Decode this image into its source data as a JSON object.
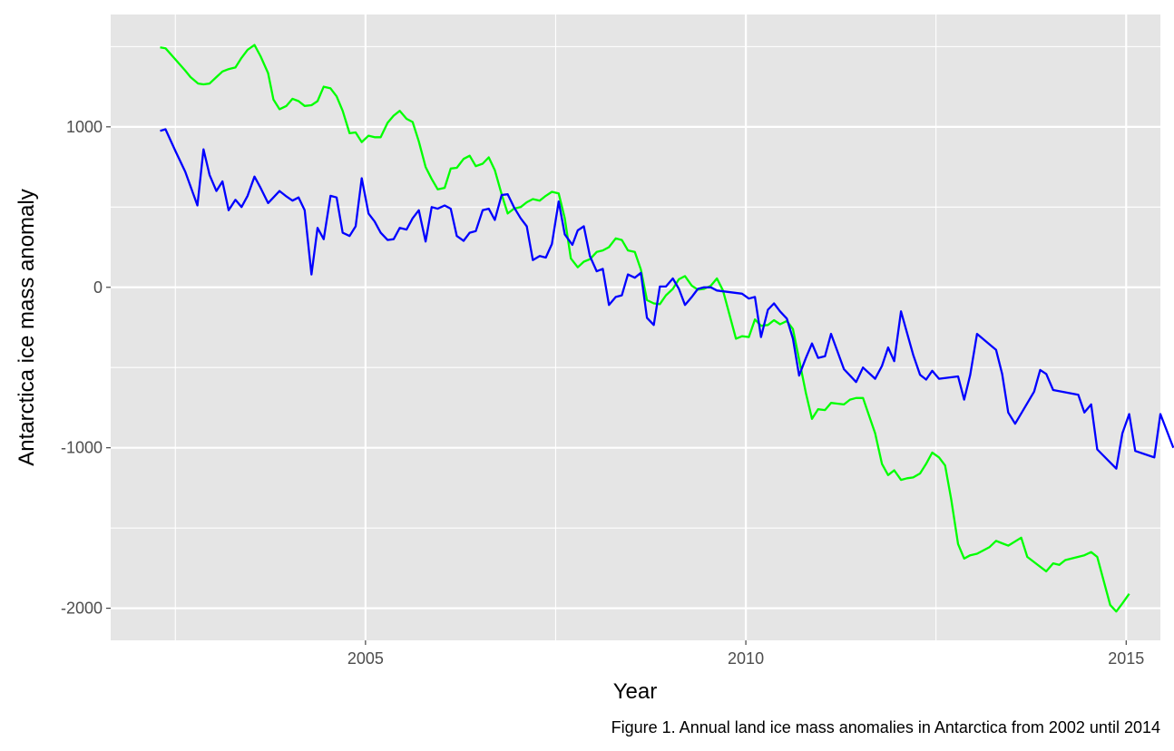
{
  "chart_data": {
    "type": "line",
    "title": "",
    "caption": "Figure 1.  Annual land ice mass anomalies in Antarctica from 2002 until 2014",
    "xlabel": "Year",
    "ylabel": "Antarctica ice mass anomaly",
    "xlim": [
      2001.65,
      2015.45
    ],
    "ylim": [
      -2200,
      1700
    ],
    "x_ticks": [
      2005,
      2010,
      2015
    ],
    "x_tick_labels": [
      "2005",
      "2010",
      "2015"
    ],
    "y_ticks": [
      -2000,
      -1000,
      0,
      1000
    ],
    "y_tick_labels": [
      "-2000",
      "-1000",
      "0",
      "1000"
    ],
    "grid": true,
    "legend": "none",
    "background": "#e5e5e5",
    "series": [
      {
        "color": "#00ff00",
        "points": [
          [
            2002.3,
            1495
          ],
          [
            2002.37,
            1490
          ],
          [
            2002.5,
            1420
          ],
          [
            2002.63,
            1350
          ],
          [
            2002.7,
            1310
          ],
          [
            2002.8,
            1270
          ],
          [
            2002.87,
            1265
          ],
          [
            2002.95,
            1270
          ],
          [
            2003.04,
            1310
          ],
          [
            2003.12,
            1345
          ],
          [
            2003.2,
            1360
          ],
          [
            2003.29,
            1370
          ],
          [
            2003.37,
            1430
          ],
          [
            2003.45,
            1480
          ],
          [
            2003.54,
            1510
          ],
          [
            2003.62,
            1440
          ],
          [
            2003.72,
            1335
          ],
          [
            2003.79,
            1170
          ],
          [
            2003.87,
            1110
          ],
          [
            2003.96,
            1130
          ],
          [
            2004.04,
            1175
          ],
          [
            2004.12,
            1160
          ],
          [
            2004.2,
            1130
          ],
          [
            2004.29,
            1135
          ],
          [
            2004.37,
            1160
          ],
          [
            2004.45,
            1250
          ],
          [
            2004.54,
            1240
          ],
          [
            2004.62,
            1190
          ],
          [
            2004.7,
            1100
          ],
          [
            2004.79,
            960
          ],
          [
            2004.87,
            965
          ],
          [
            2004.95,
            905
          ],
          [
            2005.04,
            945
          ],
          [
            2005.12,
            935
          ],
          [
            2005.2,
            935
          ],
          [
            2005.29,
            1025
          ],
          [
            2005.37,
            1070
          ],
          [
            2005.45,
            1100
          ],
          [
            2005.54,
            1050
          ],
          [
            2005.62,
            1030
          ],
          [
            2005.7,
            910
          ],
          [
            2005.79,
            750
          ],
          [
            2005.87,
            675
          ],
          [
            2005.95,
            610
          ],
          [
            2006.04,
            620
          ],
          [
            2006.12,
            740
          ],
          [
            2006.2,
            745
          ],
          [
            2006.29,
            800
          ],
          [
            2006.37,
            820
          ],
          [
            2006.45,
            755
          ],
          [
            2006.54,
            770
          ],
          [
            2006.62,
            810
          ],
          [
            2006.7,
            730
          ],
          [
            2006.79,
            580
          ],
          [
            2006.87,
            460
          ],
          [
            2006.95,
            490
          ],
          [
            2007.04,
            500
          ],
          [
            2007.12,
            530
          ],
          [
            2007.2,
            550
          ],
          [
            2007.29,
            540
          ],
          [
            2007.37,
            570
          ],
          [
            2007.45,
            595
          ],
          [
            2007.54,
            585
          ],
          [
            2007.62,
            430
          ],
          [
            2007.7,
            180
          ],
          [
            2007.79,
            125
          ],
          [
            2007.87,
            160
          ],
          [
            2007.95,
            175
          ],
          [
            2008.04,
            220
          ],
          [
            2008.12,
            230
          ],
          [
            2008.2,
            250
          ],
          [
            2008.29,
            305
          ],
          [
            2008.37,
            295
          ],
          [
            2008.45,
            230
          ],
          [
            2008.54,
            220
          ],
          [
            2008.62,
            110
          ],
          [
            2008.7,
            -80
          ],
          [
            2008.79,
            -100
          ],
          [
            2008.87,
            -105
          ],
          [
            2008.95,
            -50
          ],
          [
            2009.04,
            -10
          ],
          [
            2009.12,
            50
          ],
          [
            2009.2,
            70
          ],
          [
            2009.29,
            10
          ],
          [
            2009.37,
            -15
          ],
          [
            2009.45,
            -10
          ],
          [
            2009.54,
            10
          ],
          [
            2009.62,
            55
          ],
          [
            2009.7,
            -20
          ],
          [
            2009.79,
            -180
          ],
          [
            2009.87,
            -320
          ],
          [
            2009.95,
            -305
          ],
          [
            2010.04,
            -310
          ],
          [
            2010.12,
            -200
          ],
          [
            2010.2,
            -240
          ],
          [
            2010.29,
            -235
          ],
          [
            2010.37,
            -205
          ],
          [
            2010.45,
            -230
          ],
          [
            2010.54,
            -210
          ],
          [
            2010.62,
            -260
          ],
          [
            2010.7,
            -450
          ],
          [
            2010.79,
            -660
          ],
          [
            2010.87,
            -820
          ],
          [
            2010.95,
            -760
          ],
          [
            2011.04,
            -765
          ],
          [
            2011.12,
            -720
          ],
          [
            2011.2,
            -725
          ],
          [
            2011.29,
            -730
          ],
          [
            2011.37,
            -700
          ],
          [
            2011.45,
            -690
          ],
          [
            2011.54,
            -690
          ],
          [
            2011.7,
            -910
          ],
          [
            2011.79,
            -1100
          ],
          [
            2011.87,
            -1170
          ],
          [
            2011.95,
            -1140
          ],
          [
            2012.04,
            -1200
          ],
          [
            2012.12,
            -1190
          ],
          [
            2012.2,
            -1185
          ],
          [
            2012.29,
            -1160
          ],
          [
            2012.37,
            -1100
          ],
          [
            2012.45,
            -1030
          ],
          [
            2012.54,
            -1060
          ],
          [
            2012.62,
            -1110
          ],
          [
            2012.7,
            -1320
          ],
          [
            2012.79,
            -1600
          ],
          [
            2012.87,
            -1690
          ],
          [
            2012.95,
            -1670
          ],
          [
            2013.04,
            -1660
          ],
          [
            2013.2,
            -1620
          ],
          [
            2013.29,
            -1580
          ],
          [
            2013.37,
            -1595
          ],
          [
            2013.45,
            -1610
          ],
          [
            2013.62,
            -1560
          ],
          [
            2013.7,
            -1680
          ],
          [
            2013.95,
            -1770
          ],
          [
            2014.04,
            -1720
          ],
          [
            2014.12,
            -1730
          ],
          [
            2014.2,
            -1700
          ],
          [
            2014.45,
            -1670
          ],
          [
            2014.54,
            -1650
          ],
          [
            2014.62,
            -1680
          ],
          [
            2014.79,
            -1980
          ],
          [
            2014.87,
            -2020
          ],
          [
            2014.95,
            -1970
          ],
          [
            2015.04,
            -1910
          ]
        ]
      },
      {
        "color": "#0000ff",
        "points": [
          [
            2002.3,
            975
          ],
          [
            2002.37,
            985
          ],
          [
            2002.5,
            850
          ],
          [
            2002.63,
            720
          ],
          [
            2002.79,
            510
          ],
          [
            2002.87,
            860
          ],
          [
            2002.95,
            700
          ],
          [
            2003.04,
            600
          ],
          [
            2003.12,
            660
          ],
          [
            2003.2,
            480
          ],
          [
            2003.29,
            545
          ],
          [
            2003.37,
            500
          ],
          [
            2003.45,
            570
          ],
          [
            2003.54,
            690
          ],
          [
            2003.62,
            620
          ],
          [
            2003.72,
            525
          ],
          [
            2003.79,
            560
          ],
          [
            2003.87,
            600
          ],
          [
            2003.95,
            570
          ],
          [
            2004.04,
            540
          ],
          [
            2004.12,
            560
          ],
          [
            2004.2,
            480
          ],
          [
            2004.29,
            80
          ],
          [
            2004.37,
            370
          ],
          [
            2004.45,
            300
          ],
          [
            2004.54,
            570
          ],
          [
            2004.62,
            560
          ],
          [
            2004.7,
            340
          ],
          [
            2004.79,
            320
          ],
          [
            2004.87,
            380
          ],
          [
            2004.95,
            680
          ],
          [
            2005.04,
            460
          ],
          [
            2005.12,
            410
          ],
          [
            2005.2,
            340
          ],
          [
            2005.29,
            295
          ],
          [
            2005.37,
            300
          ],
          [
            2005.45,
            370
          ],
          [
            2005.54,
            360
          ],
          [
            2005.62,
            430
          ],
          [
            2005.7,
            480
          ],
          [
            2005.79,
            285
          ],
          [
            2005.87,
            500
          ],
          [
            2005.95,
            490
          ],
          [
            2006.04,
            510
          ],
          [
            2006.12,
            490
          ],
          [
            2006.2,
            320
          ],
          [
            2006.29,
            290
          ],
          [
            2006.37,
            340
          ],
          [
            2006.45,
            350
          ],
          [
            2006.54,
            480
          ],
          [
            2006.62,
            490
          ],
          [
            2006.7,
            420
          ],
          [
            2006.79,
            575
          ],
          [
            2006.87,
            580
          ],
          [
            2006.95,
            500
          ],
          [
            2007.04,
            430
          ],
          [
            2007.12,
            380
          ],
          [
            2007.2,
            170
          ],
          [
            2007.29,
            195
          ],
          [
            2007.37,
            185
          ],
          [
            2007.45,
            270
          ],
          [
            2007.54,
            535
          ],
          [
            2007.62,
            330
          ],
          [
            2007.72,
            265
          ],
          [
            2007.79,
            355
          ],
          [
            2007.87,
            380
          ],
          [
            2007.95,
            195
          ],
          [
            2008.04,
            100
          ],
          [
            2008.12,
            115
          ],
          [
            2008.2,
            -110
          ],
          [
            2008.29,
            -60
          ],
          [
            2008.37,
            -50
          ],
          [
            2008.45,
            80
          ],
          [
            2008.54,
            60
          ],
          [
            2008.62,
            90
          ],
          [
            2008.7,
            -190
          ],
          [
            2008.79,
            -235
          ],
          [
            2008.87,
            5
          ],
          [
            2008.95,
            5
          ],
          [
            2009.04,
            55
          ],
          [
            2009.12,
            -10
          ],
          [
            2009.2,
            -110
          ],
          [
            2009.29,
            -60
          ],
          [
            2009.37,
            -10
          ],
          [
            2009.45,
            0
          ],
          [
            2009.54,
            0
          ],
          [
            2009.62,
            -20
          ],
          [
            2009.95,
            -40
          ],
          [
            2010.04,
            -70
          ],
          [
            2010.12,
            -60
          ],
          [
            2010.2,
            -310
          ],
          [
            2010.29,
            -140
          ],
          [
            2010.37,
            -100
          ],
          [
            2010.45,
            -150
          ],
          [
            2010.54,
            -195
          ],
          [
            2010.62,
            -320
          ],
          [
            2010.7,
            -550
          ],
          [
            2010.79,
            -440
          ],
          [
            2010.87,
            -350
          ],
          [
            2010.95,
            -440
          ],
          [
            2011.04,
            -430
          ],
          [
            2011.12,
            -290
          ],
          [
            2011.29,
            -510
          ],
          [
            2011.37,
            -550
          ],
          [
            2011.45,
            -590
          ],
          [
            2011.54,
            -500
          ],
          [
            2011.7,
            -570
          ],
          [
            2011.79,
            -490
          ],
          [
            2011.87,
            -375
          ],
          [
            2011.95,
            -460
          ],
          [
            2012.04,
            -150
          ],
          [
            2012.2,
            -420
          ],
          [
            2012.29,
            -545
          ],
          [
            2012.37,
            -575
          ],
          [
            2012.45,
            -520
          ],
          [
            2012.54,
            -570
          ],
          [
            2012.79,
            -555
          ],
          [
            2012.87,
            -700
          ],
          [
            2012.95,
            -545
          ],
          [
            2013.04,
            -290
          ],
          [
            2013.29,
            -390
          ],
          [
            2013.37,
            -540
          ],
          [
            2013.45,
            -780
          ],
          [
            2013.54,
            -850
          ],
          [
            2013.79,
            -650
          ],
          [
            2013.87,
            -515
          ],
          [
            2013.95,
            -540
          ],
          [
            2014.04,
            -640
          ],
          [
            2014.37,
            -670
          ],
          [
            2014.45,
            -780
          ],
          [
            2014.54,
            -730
          ],
          [
            2014.62,
            -1010
          ],
          [
            2014.87,
            -1130
          ],
          [
            2014.95,
            -910
          ],
          [
            2015.04,
            -790
          ],
          [
            2015.12,
            -1020
          ],
          [
            2015.37,
            -1060
          ],
          [
            2015.45,
            -790
          ],
          [
            2015.54,
            -900
          ],
          [
            2015.62,
            -1000
          ]
        ]
      }
    ]
  }
}
